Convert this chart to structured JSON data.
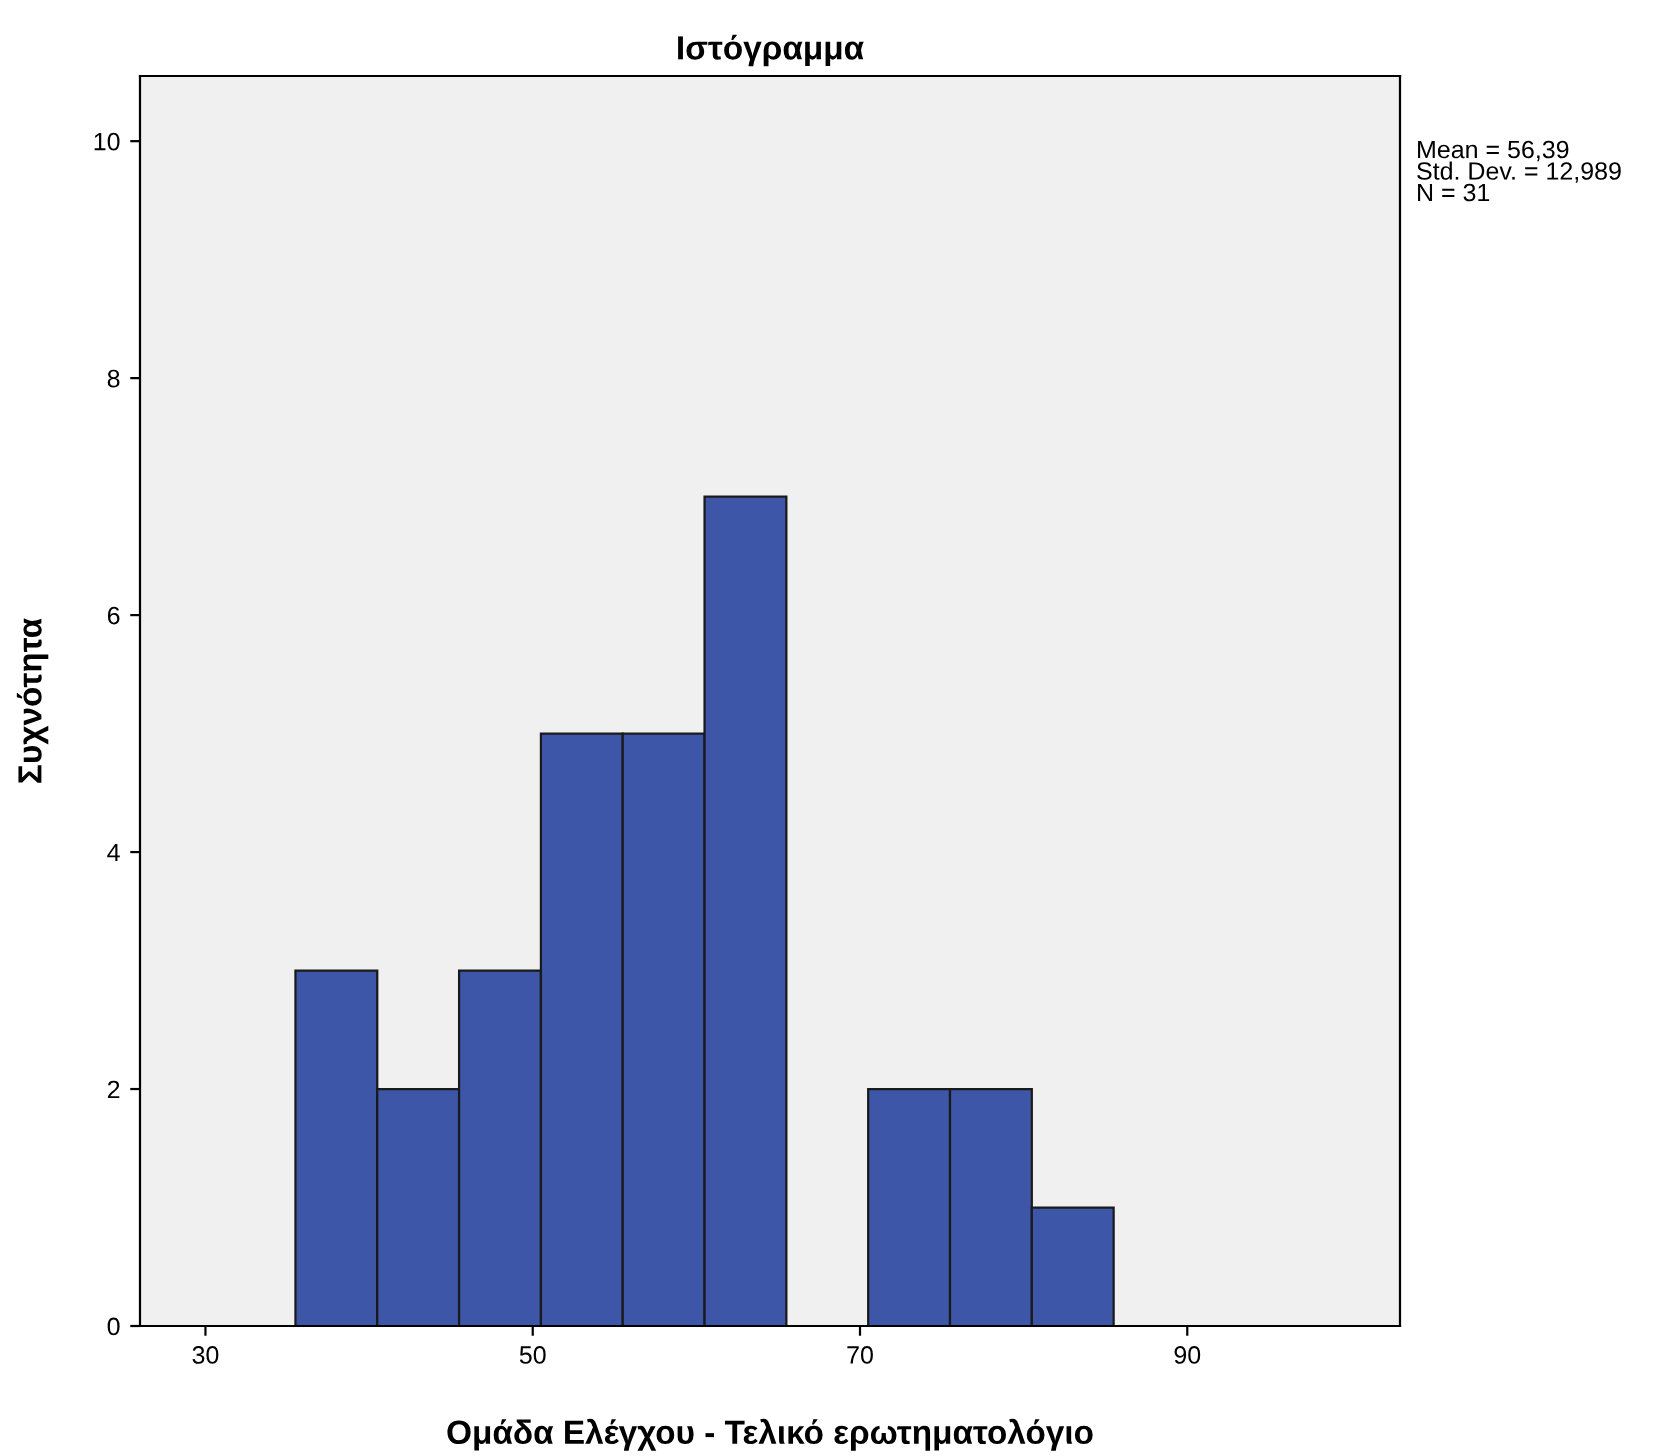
{
  "chart_data": {
    "type": "histogram",
    "title": "Ιστόγραμμα",
    "xlabel": "Ομάδα Ελέγχου - Τελικό ερωτηματολόγιο",
    "ylabel": "Συχνότητα",
    "bins": [
      35.5,
      40.5,
      45.5,
      50.5,
      55.5,
      60.5,
      65.5,
      70.5,
      75.5,
      80.5,
      85.5
    ],
    "values": [
      3,
      2,
      3,
      5,
      5,
      7,
      0,
      2,
      2,
      1
    ],
    "color": "#3d56a8",
    "xlim": [
      26,
      103
    ],
    "ylim": [
      0,
      10.55
    ],
    "xticks": [
      30,
      50,
      70,
      90
    ],
    "yticks": [
      0,
      2,
      4,
      6,
      8,
      10
    ],
    "grid": false,
    "annotations": [
      "Mean = 56,39\nStd. Dev. = 12,989\nN = 31"
    ]
  }
}
